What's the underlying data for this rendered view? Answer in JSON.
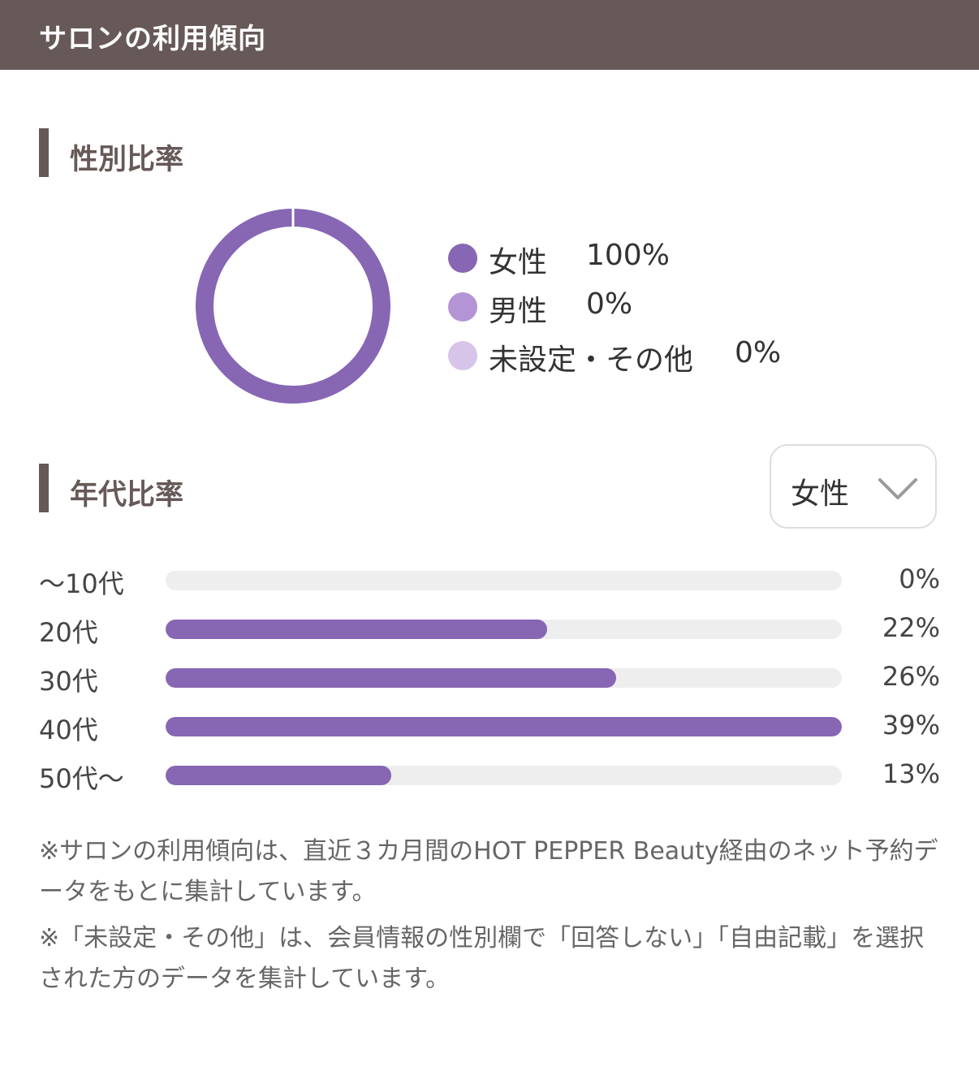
{
  "header": {
    "title": "サロンの利用傾向"
  },
  "gender_section": {
    "heading": "性別比率",
    "legend": [
      {
        "label": "女性",
        "value": "100%",
        "color": "#8766b4"
      },
      {
        "label": "男性",
        "value": "0%",
        "color": "#b394d5"
      },
      {
        "label": "未設定・その他",
        "value": "0%",
        "color": "#d6c5e8"
      }
    ]
  },
  "age_section": {
    "heading": "年代比率",
    "filter": {
      "selected": "女性",
      "icon": "chevron-down-icon"
    }
  },
  "notes": [
    "※サロンの利用傾向は、直近３カ月間のHOT PEPPER Beauty経由のネット予約データをもとに集計しています。",
    "※「未設定・その他」は、会員情報の性別欄で「回答しない」「自由記載」を選択された方のデータを集計しています。"
  ],
  "chart_data": [
    {
      "type": "pie",
      "title": "性別比率",
      "categories": [
        "女性",
        "男性",
        "未設定・その他"
      ],
      "values": [
        100,
        0,
        0
      ],
      "colors": [
        "#8766b4",
        "#b394d5",
        "#d6c5e8"
      ],
      "donut": true,
      "legend": "right"
    },
    {
      "type": "bar",
      "orientation": "horizontal",
      "title": "年代比率",
      "categories": [
        "〜10代",
        "20代",
        "30代",
        "40代",
        "50代〜"
      ],
      "values": [
        0,
        22,
        26,
        39,
        13
      ],
      "value_labels": [
        "0%",
        "22%",
        "26%",
        "39%",
        "13%"
      ],
      "scale_max": 39,
      "color": "#8766b4",
      "track_color": "#eeeeee"
    }
  ]
}
